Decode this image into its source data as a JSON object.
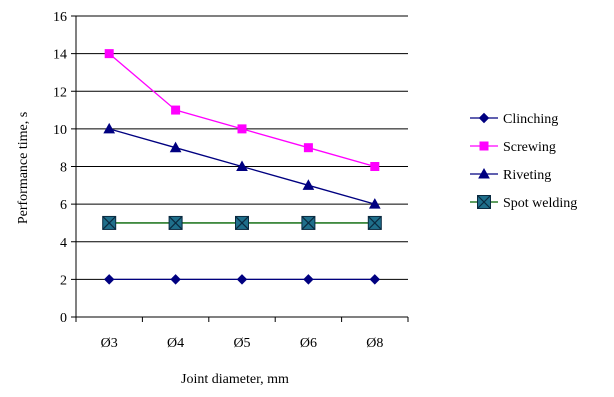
{
  "chart_data": {
    "type": "line",
    "title": "",
    "xlabel": "Joint diameter, mm",
    "ylabel": "Performance time, s",
    "categories": [
      "Ø3",
      "Ø4",
      "Ø5",
      "Ø6",
      "Ø8"
    ],
    "ylim": [
      0,
      16
    ],
    "yticks": [
      0,
      2,
      4,
      6,
      8,
      10,
      12,
      14,
      16
    ],
    "grid": true,
    "legend_position": "right",
    "series": [
      {
        "name": "Clinching",
        "values": [
          2,
          2,
          2,
          2,
          2
        ],
        "color": "#000080",
        "marker": "diamond"
      },
      {
        "name": "Screwing",
        "values": [
          14,
          11,
          10,
          9,
          8
        ],
        "color": "#ff00ff",
        "marker": "square"
      },
      {
        "name": "Riveting",
        "values": [
          10,
          9,
          8,
          7,
          6
        ],
        "color": "#000080",
        "marker": "triangle"
      },
      {
        "name": "Spot welding",
        "values": [
          5,
          5,
          5,
          5,
          5
        ],
        "color": "#006400",
        "marker": "x-square",
        "marker_fill": "#1f6f8b"
      }
    ]
  }
}
